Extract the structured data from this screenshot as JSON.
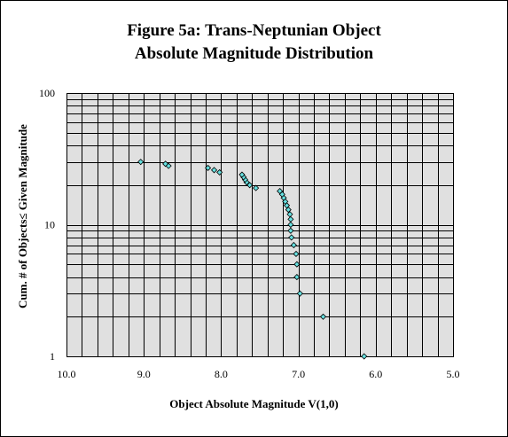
{
  "title_line_1": "Figure 5a:  Trans-Neptunian Object",
  "title_line_2": "Absolute Magnitude Distribution",
  "chart_data": {
    "type": "scatter",
    "title": "Figure 5a:  Trans-Neptunian Object Absolute Magnitude Distribution",
    "xlabel": "Object Absolute Magnitude V(1,0)",
    "ylabel": "Cum. # of Objects≤ Given Magnitude",
    "x_tick_labels": [
      "10.0",
      "9.0",
      "8.0",
      "7.0",
      "6.0",
      "5.0"
    ],
    "x_ticks": [
      10,
      9,
      8,
      7,
      6,
      5
    ],
    "y_tick_labels": [
      "1",
      "10",
      "100"
    ],
    "y_ticks": [
      1,
      10,
      100
    ],
    "xlim": [
      10,
      5
    ],
    "x_reversed": true,
    "ylim": [
      1,
      100
    ],
    "y_scale": "log",
    "grid": true,
    "plot_background": "#e0e0e0",
    "marker_color": "#66e0e0",
    "marker_shape": "diamond",
    "points": [
      {
        "x": 6.15,
        "y": 1
      },
      {
        "x": 6.68,
        "y": 2
      },
      {
        "x": 6.98,
        "y": 3
      },
      {
        "x": 7.02,
        "y": 4
      },
      {
        "x": 7.02,
        "y": 5
      },
      {
        "x": 7.03,
        "y": 6
      },
      {
        "x": 7.06,
        "y": 7
      },
      {
        "x": 7.09,
        "y": 8
      },
      {
        "x": 7.1,
        "y": 9
      },
      {
        "x": 7.1,
        "y": 10
      },
      {
        "x": 7.1,
        "y": 11
      },
      {
        "x": 7.11,
        "y": 12
      },
      {
        "x": 7.13,
        "y": 13
      },
      {
        "x": 7.15,
        "y": 14
      },
      {
        "x": 7.17,
        "y": 15
      },
      {
        "x": 7.19,
        "y": 16
      },
      {
        "x": 7.21,
        "y": 17
      },
      {
        "x": 7.24,
        "y": 18
      },
      {
        "x": 7.55,
        "y": 19
      },
      {
        "x": 7.63,
        "y": 20
      },
      {
        "x": 7.67,
        "y": 21
      },
      {
        "x": 7.69,
        "y": 22
      },
      {
        "x": 7.71,
        "y": 23
      },
      {
        "x": 7.73,
        "y": 24
      },
      {
        "x": 8.02,
        "y": 25
      },
      {
        "x": 8.09,
        "y": 26
      },
      {
        "x": 8.17,
        "y": 27
      },
      {
        "x": 8.68,
        "y": 28
      },
      {
        "x": 8.72,
        "y": 29
      },
      {
        "x": 9.04,
        "y": 30
      }
    ]
  }
}
